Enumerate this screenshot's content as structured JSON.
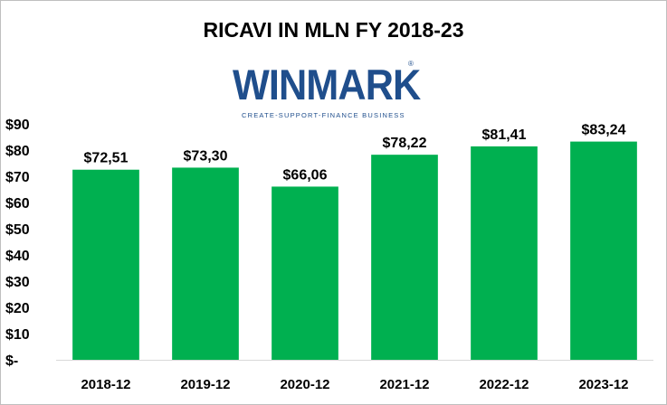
{
  "chart_data": {
    "type": "bar",
    "title": "RICAVI IN MLN FY 2018-23",
    "categories": [
      "2018-12",
      "2019-12",
      "2020-12",
      "2021-12",
      "2022-12",
      "2023-12"
    ],
    "values": [
      72.51,
      73.3,
      66.06,
      78.22,
      81.41,
      83.24
    ],
    "data_labels": [
      "$72,51",
      "$73,30",
      "$66,06",
      "$78,22",
      "$81,41",
      "$83,24"
    ],
    "y_ticks": [
      "$-",
      "$10",
      "$20",
      "$30",
      "$40",
      "$50",
      "$60",
      "$70",
      "$80",
      "$90"
    ],
    "ylim": [
      0,
      90
    ],
    "grid": false,
    "bar_color": "#00b050"
  },
  "logo": {
    "name": "WINMARK",
    "registered": "®",
    "tagline": "CREATE-SUPPORT-FINANCE BUSINESS",
    "color": "#1f4e8c"
  }
}
